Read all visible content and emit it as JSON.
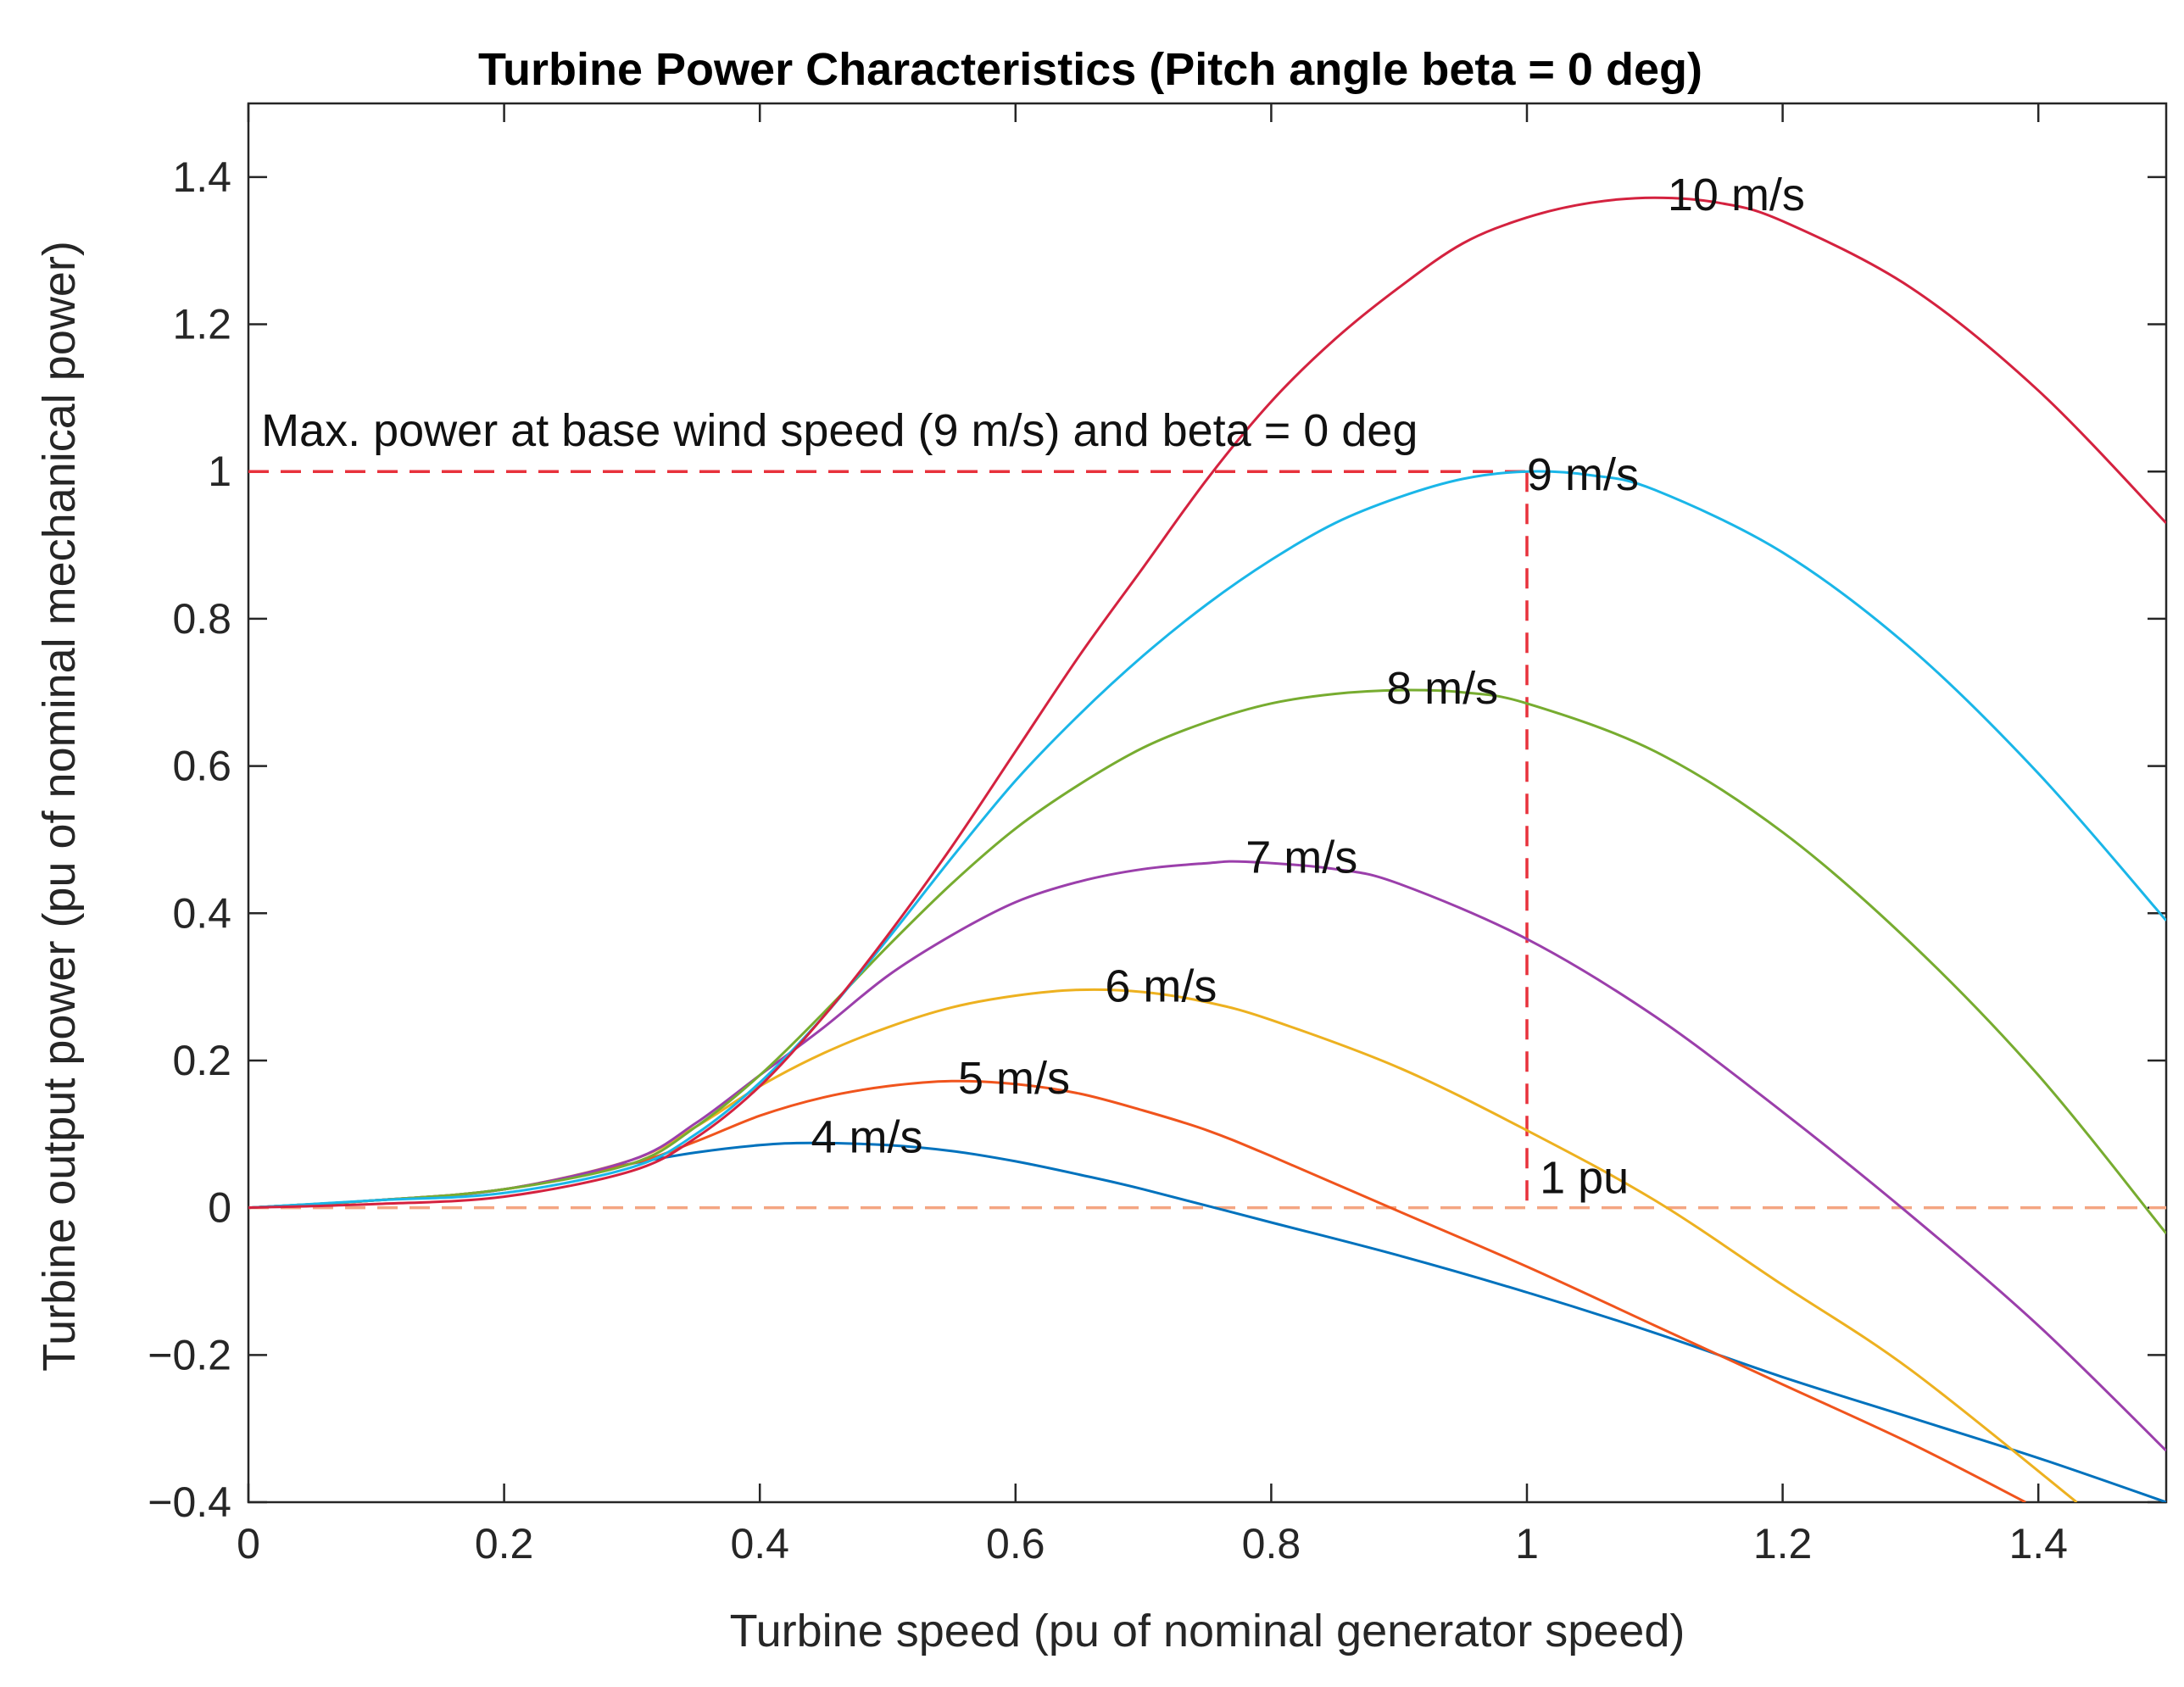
{
  "chart_data": {
    "type": "line",
    "title": "Turbine Power Characteristics (Pitch angle beta = 0 deg)",
    "xlabel": "Turbine speed (pu of nominal generator speed)",
    "ylabel": "Turbine output power (pu of nominal mechanical power)",
    "xlim": [
      0,
      1.5
    ],
    "ylim": [
      -0.4,
      1.5
    ],
    "xticks": [
      0,
      0.2,
      0.4,
      0.6,
      0.8,
      1,
      1.2,
      1.4
    ],
    "xtick_labels": [
      "0",
      "0.2",
      "0.4",
      "0.6",
      "0.8",
      "1",
      "1.2",
      "1.4"
    ],
    "yticks": [
      -0.4,
      -0.2,
      0,
      0.2,
      0.4,
      0.6,
      0.8,
      1,
      1.2,
      1.4
    ],
    "ytick_labels": [
      "−0.4",
      "−0.2",
      "0",
      "0.2",
      "0.4",
      "0.6",
      "0.8",
      "1",
      "1.2",
      "1.4"
    ],
    "grid": false,
    "legend": "none",
    "series": [
      {
        "name": "4 m/s",
        "color": "#0072bd",
        "x": [
          0,
          0.1,
          0.2,
          0.3,
          0.35,
          0.4,
          0.44,
          0.5,
          0.55,
          0.6,
          0.65,
          0.7,
          0.8,
          0.9,
          1.0,
          1.1,
          1.2,
          1.3,
          1.4,
          1.5
        ],
        "y": [
          0,
          0.01,
          0.025,
          0.06,
          0.075,
          0.085,
          0.088,
          0.085,
          0.077,
          0.063,
          0.045,
          0.025,
          -0.02,
          -0.065,
          -0.115,
          -0.17,
          -0.23,
          -0.285,
          -0.34,
          -0.4
        ]
      },
      {
        "name": "5 m/s",
        "color": "#f0541d",
        "x": [
          0,
          0.1,
          0.2,
          0.3,
          0.35,
          0.4,
          0.45,
          0.5,
          0.55,
          0.6,
          0.65,
          0.7,
          0.75,
          0.8,
          0.9,
          1.0,
          1.1,
          1.2,
          1.3,
          1.39
        ],
        "y": [
          0,
          0.01,
          0.025,
          0.06,
          0.09,
          0.125,
          0.15,
          0.165,
          0.172,
          0.168,
          0.155,
          0.132,
          0.105,
          0.07,
          -0.005,
          -0.08,
          -0.16,
          -0.24,
          -0.32,
          -0.4
        ]
      },
      {
        "name": "6 m/s",
        "color": "#edb120",
        "x": [
          0,
          0.1,
          0.2,
          0.3,
          0.35,
          0.4,
          0.45,
          0.5,
          0.55,
          0.6,
          0.65,
          0.7,
          0.75,
          0.8,
          0.9,
          1.0,
          1.1,
          1.2,
          1.3,
          1.43
        ],
        "y": [
          0,
          0.01,
          0.025,
          0.065,
          0.11,
          0.165,
          0.21,
          0.245,
          0.272,
          0.288,
          0.296,
          0.293,
          0.279,
          0.255,
          0.19,
          0.105,
          0.01,
          -0.105,
          -0.22,
          -0.4
        ]
      },
      {
        "name": "7 m/s",
        "color": "#9b3fab",
        "x": [
          0,
          0.1,
          0.2,
          0.3,
          0.35,
          0.4,
          0.45,
          0.5,
          0.55,
          0.6,
          0.65,
          0.7,
          0.75,
          0.78,
          0.85,
          0.9,
          1.0,
          1.1,
          1.2,
          1.3,
          1.4,
          1.5
        ],
        "y": [
          0,
          0.01,
          0.025,
          0.065,
          0.115,
          0.18,
          0.245,
          0.315,
          0.37,
          0.415,
          0.443,
          0.46,
          0.468,
          0.47,
          0.46,
          0.44,
          0.365,
          0.26,
          0.13,
          -0.01,
          -0.16,
          -0.33
        ]
      },
      {
        "name": "8 m/s",
        "color": "#77ac30",
        "x": [
          0,
          0.1,
          0.2,
          0.3,
          0.35,
          0.4,
          0.45,
          0.5,
          0.55,
          0.6,
          0.65,
          0.7,
          0.75,
          0.8,
          0.85,
          0.9,
          0.95,
          1.0,
          1.1,
          1.2,
          1.3,
          1.4,
          1.5
        ],
        "y": [
          0,
          0.01,
          0.025,
          0.06,
          0.11,
          0.18,
          0.265,
          0.355,
          0.44,
          0.515,
          0.575,
          0.625,
          0.66,
          0.685,
          0.698,
          0.703,
          0.7,
          0.685,
          0.62,
          0.51,
          0.36,
          0.18,
          -0.035
        ]
      },
      {
        "name": "9 m/s",
        "color": "#1ab6e8",
        "x": [
          0,
          0.1,
          0.2,
          0.3,
          0.35,
          0.4,
          0.45,
          0.5,
          0.55,
          0.6,
          0.65,
          0.7,
          0.75,
          0.8,
          0.85,
          0.9,
          0.95,
          1.0,
          1.05,
          1.1,
          1.2,
          1.3,
          1.4,
          1.5
        ],
        "y": [
          0,
          0.01,
          0.02,
          0.055,
          0.1,
          0.17,
          0.26,
          0.365,
          0.475,
          0.58,
          0.67,
          0.75,
          0.82,
          0.88,
          0.93,
          0.965,
          0.99,
          1.0,
          0.995,
          0.975,
          0.89,
          0.76,
          0.59,
          0.39
        ]
      },
      {
        "name": "10 m/s",
        "color": "#d4223f",
        "x": [
          0,
          0.1,
          0.2,
          0.3,
          0.35,
          0.4,
          0.45,
          0.5,
          0.55,
          0.6,
          0.65,
          0.7,
          0.75,
          0.8,
          0.85,
          0.9,
          0.95,
          1.0,
          1.05,
          1.1,
          1.15,
          1.2,
          1.3,
          1.4,
          1.5
        ],
        "y": [
          0,
          0.005,
          0.015,
          0.05,
          0.095,
          0.165,
          0.26,
          0.37,
          0.49,
          0.62,
          0.75,
          0.87,
          0.99,
          1.095,
          1.18,
          1.25,
          1.31,
          1.345,
          1.365,
          1.372,
          1.365,
          1.34,
          1.25,
          1.11,
          0.93
        ]
      }
    ],
    "reference_lines": [
      {
        "name": "max-power-line",
        "color": "#e8323c",
        "x": [
          0,
          1.0
        ],
        "y": [
          1,
          1
        ]
      },
      {
        "name": "one-pu-line",
        "color": "#e8323c",
        "x": [
          1.0,
          1.0
        ],
        "y": [
          1,
          0
        ]
      },
      {
        "name": "zero-power-line",
        "color": "#f4a582",
        "x": [
          0,
          1.5
        ],
        "y": [
          0,
          0
        ]
      }
    ],
    "annotations": [
      {
        "name": "annotation-max-power",
        "text": "Max. power at base wind speed (9 m/s) and beta = 0 deg",
        "x": 0.01,
        "y": 1.035
      },
      {
        "name": "annotation-10ms",
        "text": "10 m/s",
        "x": 1.11,
        "y": 1.355
      },
      {
        "name": "annotation-9ms",
        "text": "9 m/s",
        "x": 1.0,
        "y": 0.975
      },
      {
        "name": "annotation-8ms",
        "text": "8 m/s",
        "x": 0.89,
        "y": 0.685
      },
      {
        "name": "annotation-7ms",
        "text": "7 m/s",
        "x": 0.78,
        "y": 0.455
      },
      {
        "name": "annotation-6ms",
        "text": "6 m/s",
        "x": 0.67,
        "y": 0.28
      },
      {
        "name": "annotation-5ms",
        "text": "5 m/s",
        "x": 0.555,
        "y": 0.155
      },
      {
        "name": "annotation-4ms",
        "text": "4 m/s",
        "x": 0.44,
        "y": 0.075
      },
      {
        "name": "annotation-1pu",
        "text": "1 pu",
        "x": 1.01,
        "y": 0.02
      }
    ]
  }
}
